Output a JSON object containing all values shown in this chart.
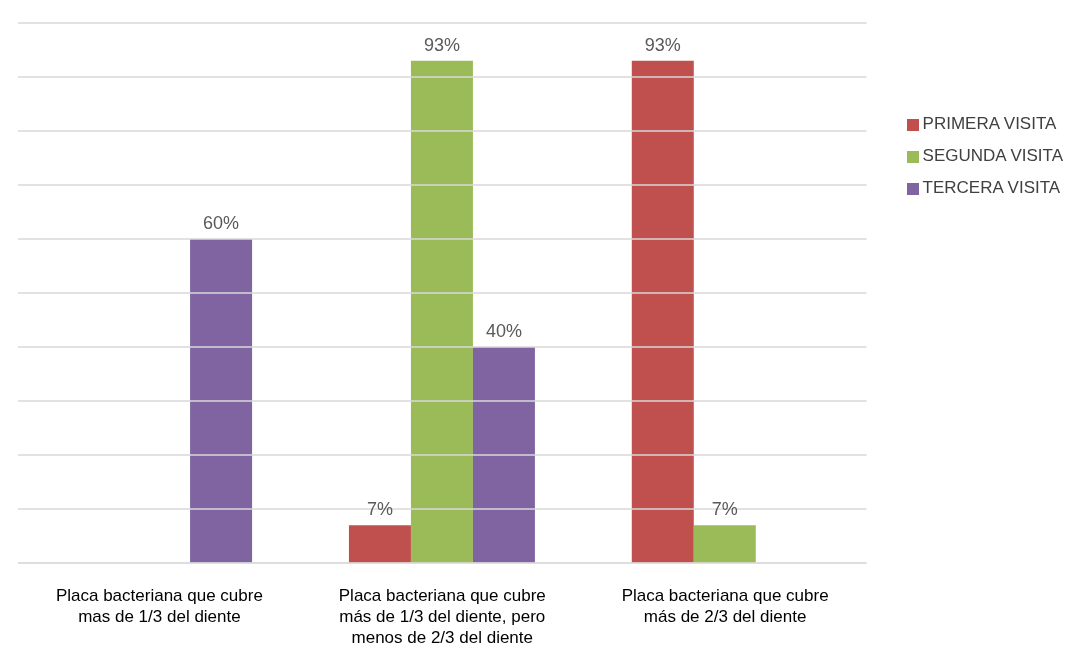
{
  "chart_data": {
    "type": "bar",
    "categories": [
      "Placa bacteriana que cubre mas de 1/3 del diente",
      "Placa bacteriana que cubre más de 1/3 del diente, pero menos de 2/3 del diente",
      "Placa bacteriana que cubre más de 2/3 del diente"
    ],
    "series": [
      {
        "name": "PRIMERA VISITA",
        "color": "#c0504d",
        "values": [
          null,
          7,
          93
        ],
        "value_labels": [
          null,
          "7%",
          "93%"
        ]
      },
      {
        "name": "SEGUNDA VISITA",
        "color": "#9bbb59",
        "values": [
          null,
          93,
          7
        ],
        "value_labels": [
          null,
          "93%",
          "7%"
        ]
      },
      {
        "name": "TERCERA VISITA",
        "color": "#8064a2",
        "values": [
          60,
          40,
          null
        ],
        "value_labels": [
          "60%",
          "40%",
          null
        ]
      }
    ],
    "ylim": [
      0,
      100
    ],
    "yticks": [
      {
        "value": 0,
        "label": null
      },
      {
        "value": 10,
        "label": null
      },
      {
        "value": 20,
        "label": null
      },
      {
        "value": 30,
        "label": null
      },
      {
        "value": 40,
        "label": null
      },
      {
        "value": 50,
        "label": null
      },
      {
        "value": 60,
        "label": null
      },
      {
        "value": 70,
        "label": null
      },
      {
        "value": 80,
        "label": null
      },
      {
        "value": 90,
        "label": null
      },
      {
        "value": 100,
        "label": null
      }
    ],
    "grid": "y",
    "legend": "right",
    "tick_labels": "x"
  }
}
